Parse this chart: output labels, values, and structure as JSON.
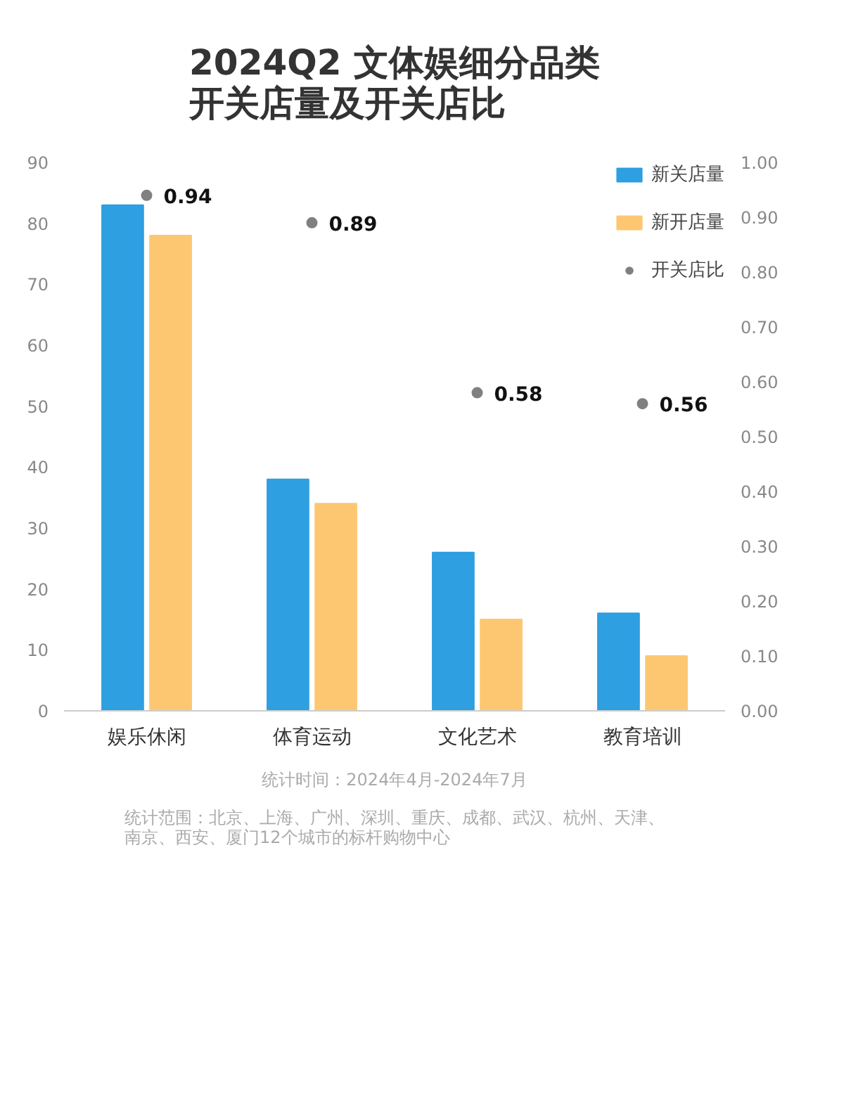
{
  "chart_data": {
    "type": "bar",
    "title": "2024Q2 文体娱细分品类开关店量及开关店比",
    "categories": [
      "娱乐休闲",
      "体育运动",
      "文化艺术",
      "教育培训"
    ],
    "series": [
      {
        "name": "新关店量",
        "color": "#2e9fe0",
        "values": [
          83,
          38,
          26,
          16
        ]
      },
      {
        "name": "新开店量",
        "color": "#fdc772",
        "values": [
          78,
          34,
          15,
          9
        ]
      },
      {
        "name": "开关店比",
        "type": "scatter",
        "axis": "y2",
        "color": "#808080",
        "values": [
          0.94,
          0.89,
          0.58,
          0.56
        ],
        "value_labels": [
          "0.94",
          "0.89",
          "0.58",
          "0.56"
        ]
      }
    ],
    "ylim": [
      0,
      90
    ],
    "yticks": [
      0,
      10,
      20,
      30,
      40,
      50,
      60,
      70,
      80,
      90
    ],
    "y2lim": [
      0,
      1
    ],
    "y2ticks": [
      {
        "value": 0,
        "label": "0.00"
      },
      {
        "value": 0.1,
        "label": "0.10"
      },
      {
        "value": 0.2,
        "label": "0.20"
      },
      {
        "value": 0.3,
        "label": "0.30"
      },
      {
        "value": 0.4,
        "label": "0.40"
      },
      {
        "value": 0.5,
        "label": "0.50"
      },
      {
        "value": 0.6,
        "label": "0.60"
      },
      {
        "value": 0.7,
        "label": "0.70"
      },
      {
        "value": 0.8,
        "label": "0.80"
      },
      {
        "value": 0.9,
        "label": "0.90"
      },
      {
        "value": 1,
        "label": "1.00"
      }
    ],
    "legend": "top right",
    "grid": false,
    "marker": "circle",
    "annotations": [
      "统计时间：2024年4月-2024年7月",
      "统计范围：北京、上海、广州、深圳、重庆、成都、武汉、杭州、天津、南京、西安、厦门12个城市的标杆购物中心"
    ]
  }
}
